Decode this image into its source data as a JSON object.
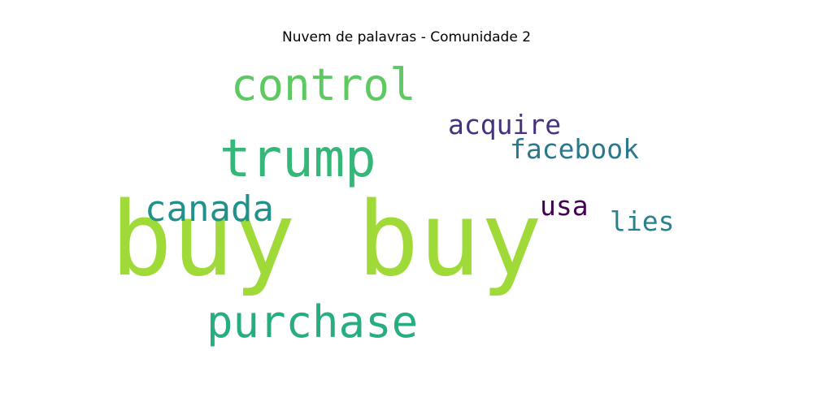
{
  "title": "Nuvem de palavras - Comunidade 2",
  "words": [
    {
      "id": "w-buy-buy",
      "text": "buy buy",
      "color": "#a0da39"
    },
    {
      "id": "w-control",
      "text": "control",
      "color": "#5ec962"
    },
    {
      "id": "w-trump",
      "text": "trump",
      "color": "#35b779"
    },
    {
      "id": "w-purchase",
      "text": "purchase",
      "color": "#26ad81"
    },
    {
      "id": "w-canada",
      "text": "canada",
      "color": "#21918c"
    },
    {
      "id": "w-acquire",
      "text": "acquire",
      "color": "#46327e"
    },
    {
      "id": "w-facebook",
      "text": "facebook",
      "color": "#2a788e"
    },
    {
      "id": "w-usa",
      "text": "usa",
      "color": "#440154"
    },
    {
      "id": "w-lies",
      "text": "lies",
      "color": "#26828e"
    }
  ]
}
